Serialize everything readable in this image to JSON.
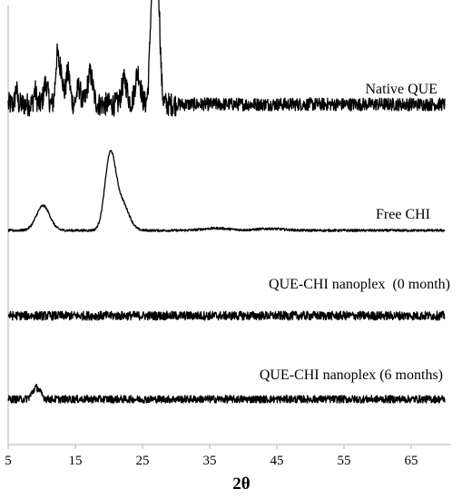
{
  "chart_data": {
    "type": "line",
    "xlabel": "2θ",
    "ylabel": "",
    "xlim": [
      5,
      70
    ],
    "x_ticks": [
      5,
      15,
      25,
      35,
      45,
      55,
      65
    ],
    "y_ticks_shown": false,
    "grid": false,
    "series": [
      {
        "name": "Native QUE",
        "baseline": 0.9,
        "noise": 0.9,
        "peaks": [
          {
            "x": 6.2,
            "h": 1.2,
            "w": 0.15
          },
          {
            "x": 9.0,
            "h": 1.0,
            "w": 0.2
          },
          {
            "x": 10.6,
            "h": 1.6,
            "w": 0.3
          },
          {
            "x": 12.3,
            "h": 3.6,
            "w": 0.25
          },
          {
            "x": 12.9,
            "h": 2.6,
            "w": 0.25
          },
          {
            "x": 13.9,
            "h": 2.4,
            "w": 0.3
          },
          {
            "x": 15.5,
            "h": 1.3,
            "w": 0.3
          },
          {
            "x": 17.2,
            "h": 2.3,
            "w": 0.4
          },
          {
            "x": 22.3,
            "h": 1.8,
            "w": 0.4
          },
          {
            "x": 24.3,
            "h": 2.4,
            "w": 0.4
          },
          {
            "x": 26.4,
            "h": 6.0,
            "w": 0.3
          },
          {
            "x": 27.3,
            "h": 6.5,
            "w": 0.3
          },
          {
            "x": 26.9,
            "h": 4.3,
            "w": 0.5
          }
        ]
      },
      {
        "name": "Free CHI",
        "baseline": 0.0,
        "noise": 0.08,
        "peaks": [
          {
            "x": 10.2,
            "h": 1.7,
            "w": 1.0
          },
          {
            "x": 20.2,
            "h": 5.1,
            "w": 0.8
          },
          {
            "x": 22.0,
            "h": 1.8,
            "w": 1.0
          },
          {
            "x": 36.0,
            "h": 0.15,
            "w": 2.0
          },
          {
            "x": 44.0,
            "h": 0.12,
            "w": 2.0
          }
        ]
      },
      {
        "name": "QUE-CHI nanoplex  (0 month)",
        "baseline": 0.0,
        "noise": 0.35,
        "peaks": []
      },
      {
        "name": "QUE-CHI nanoplex (6 months)",
        "baseline": 0.0,
        "noise": 0.3,
        "peaks": [
          {
            "x": 9.2,
            "h": 0.9,
            "w": 0.6
          }
        ]
      }
    ]
  }
}
